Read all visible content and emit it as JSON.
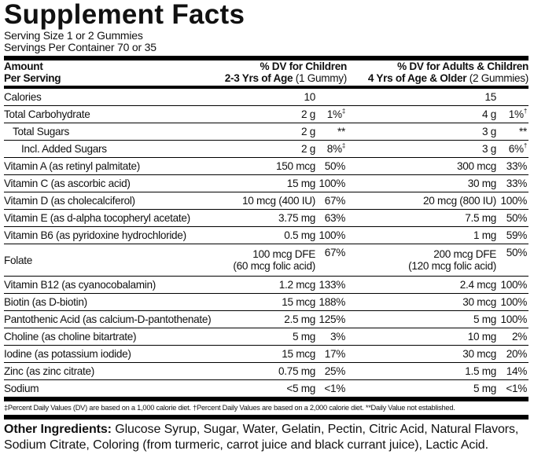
{
  "title": "Supplement Facts",
  "serving_size": "Serving Size 1 or 2 Gummies",
  "servings_per_container": "Servings Per Container 70 or 35",
  "header": {
    "amount": "Amount",
    "per_serving": "Per Serving",
    "children_dv": "% DV for Children",
    "children_age": "2-3 Yrs of Age",
    "children_qty": "(1 Gummy)",
    "adults_dv": "% DV for Adults & Children",
    "adults_age": "4 Yrs of Age & Older",
    "adults_qty": "(2 Gummies)"
  },
  "rows": [
    {
      "name": "Calories",
      "child_amount": "10",
      "adult_amount": "15"
    },
    {
      "name": "Total Carbohydrate",
      "child_amount": "2 g",
      "child_dv": "1%",
      "child_note": "‡",
      "adult_amount": "4 g",
      "adult_dv": "1%",
      "adult_note": "†"
    },
    {
      "name": "Total Sugars",
      "indent": 1,
      "child_amount": "2 g",
      "child_dv": "**",
      "adult_amount": "3 g",
      "adult_dv": "**"
    },
    {
      "name": "Incl. Added Sugars",
      "indent": 2,
      "child_amount": "2 g",
      "child_dv": "8%",
      "child_note": "‡",
      "adult_amount": "3 g",
      "adult_dv": "6%",
      "adult_note": "†"
    },
    {
      "name": "Vitamin A (as retinyl palmitate)",
      "child_amount": "150 mcg",
      "child_dv": "50%",
      "adult_amount": "300 mcg",
      "adult_dv": "33%"
    },
    {
      "name": "Vitamin C (as ascorbic acid)",
      "child_amount": "15 mg",
      "child_dv": "100%",
      "adult_amount": "30 mg",
      "adult_dv": "33%"
    },
    {
      "name": "Vitamin D (as cholecalciferol)",
      "child_amount": "10 mcg (400 IU)",
      "child_dv": "67%",
      "adult_amount": "20 mcg (800 IU)",
      "adult_dv": "100%"
    },
    {
      "name": "Vitamin E (as d-alpha tocopheryl acetate)",
      "child_amount": "3.75 mg",
      "child_dv": "63%",
      "adult_amount": "7.5 mg",
      "adult_dv": "50%"
    },
    {
      "name": "Vitamin B6 (as pyridoxine hydrochloride)",
      "child_amount": "0.5 mg",
      "child_dv": "100%",
      "adult_amount": "1 mg",
      "adult_dv": "59%"
    },
    {
      "name": "Folate",
      "child_amount": "100 mcg DFE",
      "child_amount_2": "(60 mcg folic acid)",
      "child_dv": "67%",
      "adult_amount": "200 mcg DFE",
      "adult_amount_2": "(120 mcg folic acid)",
      "adult_dv": "50%"
    },
    {
      "name": "Vitamin B12 (as cyanocobalamin)",
      "child_amount": "1.2 mcg",
      "child_dv": "133%",
      "adult_amount": "2.4 mcg",
      "adult_dv": "100%"
    },
    {
      "name": "Biotin (as D-biotin)",
      "child_amount": "15 mcg",
      "child_dv": "188%",
      "adult_amount": "30 mcg",
      "adult_dv": "100%"
    },
    {
      "name": "Pantothenic Acid (as calcium-D-pantothenate)",
      "child_amount": "2.5 mg",
      "child_dv": "125%",
      "adult_amount": "5 mg",
      "adult_dv": "100%"
    },
    {
      "name": "Choline (as choline bitartrate)",
      "child_amount": "5 mg",
      "child_dv": "3%",
      "adult_amount": "10 mg",
      "adult_dv": "2%"
    },
    {
      "name": "Iodine (as potassium iodide)",
      "child_amount": "15 mcg",
      "child_dv": "17%",
      "adult_amount": "30 mcg",
      "adult_dv": "20%"
    },
    {
      "name": "Zinc (as zinc citrate)",
      "child_amount": "0.75 mg",
      "child_dv": "25%",
      "adult_amount": "1.5 mg",
      "adult_dv": "14%"
    },
    {
      "name": "Sodium",
      "child_amount": "<5 mg",
      "child_dv": "<1%",
      "adult_amount": "5 mg",
      "adult_dv": "<1%"
    }
  ],
  "footnote": "‡Percent Daily Values (DV) are based on a 1,000 calorie diet. †Percent Daily Values are based on a 2,000 calorie diet. **Daily Value not established.",
  "other_ingredients": {
    "label": "Other Ingredients:",
    "text": "Glucose Syrup, Sugar, Water, Gelatin, Pectin, Citric Acid, Natural Flavors, Sodium Citrate, Coloring (from turmeric, carrot juice and black currant juice), Lactic Acid."
  }
}
